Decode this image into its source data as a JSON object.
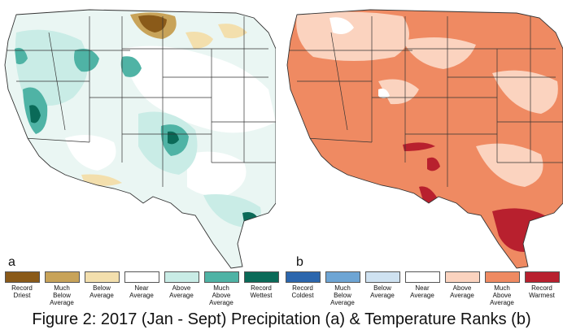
{
  "panel_a": {
    "letter": "a"
  },
  "panel_b": {
    "letter": "b"
  },
  "legend": [
    {
      "label": "Record\nDriest",
      "color": "#8a5a19"
    },
    {
      "label": "Much\nBelow\nAverage",
      "color": "#c8a359"
    },
    {
      "label": "Below\nAverage",
      "color": "#f3dfad"
    },
    {
      "label": "Near\nAverage",
      "color": "#ffffff"
    },
    {
      "label": "Above\nAverage",
      "color": "#c9ece6"
    },
    {
      "label": "Much\nAbove\nAverage",
      "color": "#4fb3a5"
    },
    {
      "label": "Record\nWettest",
      "color": "#0a6a58"
    },
    {
      "label": "Record\nColdest",
      "color": "#2b66ad"
    },
    {
      "label": "Much\nBelow\nAverage",
      "color": "#6ea5d4"
    },
    {
      "label": "Below\nAverage",
      "color": "#cfe2f1"
    },
    {
      "label": "Near\nAverage",
      "color": "#ffffff"
    },
    {
      "label": "Above\nAverage",
      "color": "#fbd3bf"
    },
    {
      "label": "Much\nAbove\nAverage",
      "color": "#ef8a62"
    },
    {
      "label": "Record\nWarmest",
      "color": "#b8202e"
    }
  ],
  "caption": "Figure 2: 2017 (Jan - Sept) Precipitation (a) & Temperature Ranks (b)"
}
